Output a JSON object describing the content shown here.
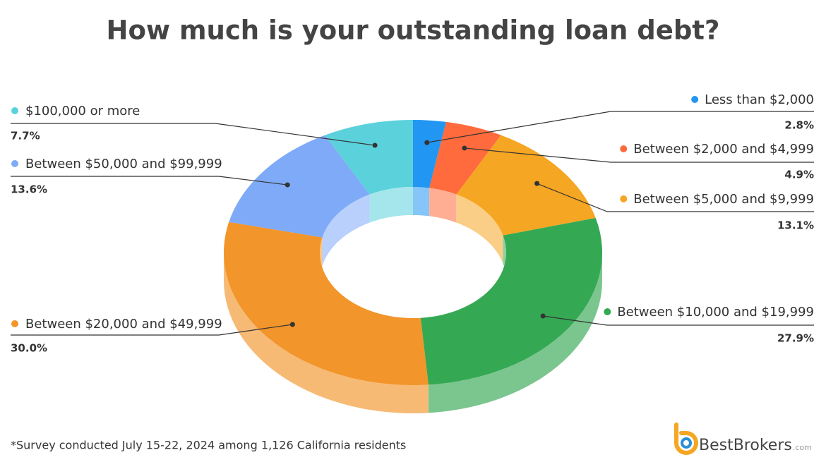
{
  "chart_data": {
    "type": "donut",
    "title": "How much is your outstanding loan debt?",
    "categories": [
      "Less than $2,000",
      "Between $2,000 and $4,999",
      "Between $5,000 and $9,999",
      "Between $10,000 and $19,999",
      "Between $20,000 and $49,999",
      "Between $50,000 and $99,999",
      "$100,000 or more"
    ],
    "values": [
      2.8,
      4.9,
      13.1,
      27.9,
      30.0,
      13.6,
      7.7
    ],
    "value_labels": [
      "2.8%",
      "4.9%",
      "13.1%",
      "27.9%",
      "30.0%",
      "13.6%",
      "7.7%"
    ],
    "colors": [
      "#2196f3",
      "#ff6b3d",
      "#f5a623",
      "#34a853",
      "#f2952a",
      "#7eaaf7",
      "#5bd1dc"
    ]
  },
  "footnote": "*Survey conducted July 15-22, 2024 among 1,126 California residents",
  "brand": {
    "name": "BestBrokers",
    "suffix": ".com"
  }
}
